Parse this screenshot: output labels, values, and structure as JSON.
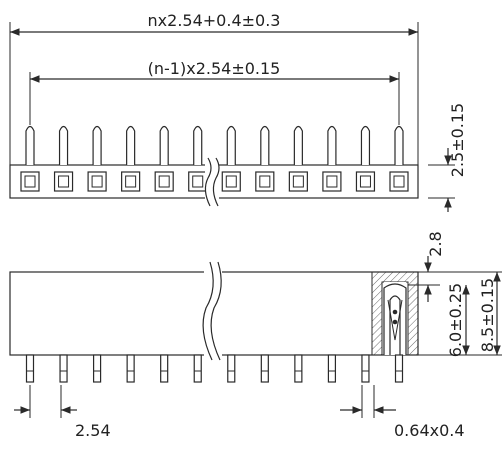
{
  "dimensions": {
    "overall_length": "nx2.54+0.4±0.3",
    "pin_span": "(n-1)x2.54±0.15",
    "pin_height": "2.5±0.15",
    "wall_thickness": "2.8",
    "contact_depth": "6.0±0.25",
    "body_height": "8.5±0.15",
    "pitch": "2.54",
    "pin_section": "0.64x0.4"
  },
  "pins": {
    "count_shown": 12
  },
  "colors": {
    "line": "#2a2a2a",
    "background": "#ffffff"
  }
}
